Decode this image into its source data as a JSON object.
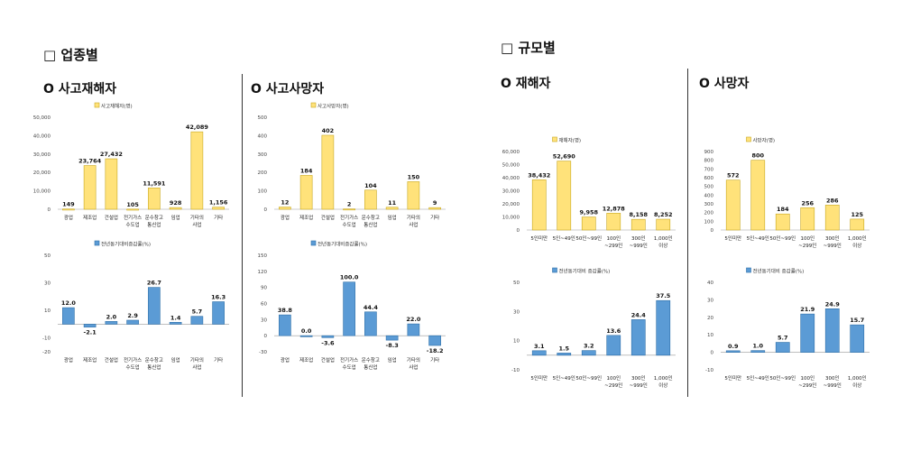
{
  "sections": {
    "industry": "□ 업종별",
    "scale": "□ 규모별"
  },
  "subtitles": {
    "industry_injury": "O 사고재해자",
    "industry_death": "O 사고사망자",
    "scale_injury": "O 재해자",
    "scale_death": "O 사망자"
  },
  "colors": {
    "yellow": "#FFE27A",
    "yellow_border": "#C8A820",
    "blue": "#5B9BD5",
    "blue_border": "#2E6FA8"
  },
  "chart_data": [
    {
      "type": "bar",
      "title": "",
      "legend": "사고재해자(명)",
      "categories": [
        [
          "광업"
        ],
        [
          "제조업"
        ],
        [
          "건설업"
        ],
        [
          "전기가스",
          "수도업"
        ],
        [
          "운수창고",
          "통신업"
        ],
        [
          "임업"
        ],
        [
          "기타의",
          "사업"
        ],
        [
          "기타"
        ]
      ],
      "values": [
        149,
        23764,
        27432,
        105,
        11591,
        928,
        42089,
        1156
      ],
      "value_labels": [
        "149",
        "23,764",
        "27,432",
        "105",
        "11,591",
        "928",
        "42,089",
        "1,156"
      ],
      "yticks": [
        0,
        10000,
        20000,
        30000,
        40000,
        50000
      ],
      "ytick_labels": [
        "0",
        "10,000",
        "20,000",
        "30,000",
        "40,000",
        "50,000"
      ],
      "ylim": [
        0,
        50000
      ],
      "color": "yellow"
    },
    {
      "type": "bar",
      "title": "",
      "legend": "사고사망자(명)",
      "categories": [
        [
          "광업"
        ],
        [
          "제조업"
        ],
        [
          "건설업"
        ],
        [
          "전기가스",
          "수도업"
        ],
        [
          "운수창고",
          "통신업"
        ],
        [
          "임업"
        ],
        [
          "기타의",
          "사업"
        ],
        [
          "기타"
        ]
      ],
      "values": [
        12,
        184,
        402,
        2,
        104,
        11,
        150,
        9
      ],
      "value_labels": [
        "12",
        "184",
        "402",
        "2",
        "104",
        "11",
        "150",
        "9"
      ],
      "yticks": [
        0,
        100,
        200,
        300,
        400,
        500
      ],
      "ytick_labels": [
        "0",
        "100",
        "200",
        "300",
        "400",
        "500"
      ],
      "ylim": [
        0,
        500
      ],
      "color": "yellow"
    },
    {
      "type": "bar",
      "title": "",
      "legend": "전년동기대비증감률(%)",
      "categories": [
        [
          "광업"
        ],
        [
          "제조업"
        ],
        [
          "건설업"
        ],
        [
          "전기가스",
          "수도업"
        ],
        [
          "운수창고",
          "통신업"
        ],
        [
          "임업"
        ],
        [
          "기타의",
          "사업"
        ],
        [
          "기타"
        ]
      ],
      "values": [
        12.0,
        -2.1,
        2.0,
        2.9,
        26.7,
        1.4,
        5.7,
        16.3
      ],
      "value_labels": [
        "12.0",
        "-2.1",
        "2.0",
        "2.9",
        "26.7",
        "1.4",
        "5.7",
        "16.3"
      ],
      "yticks": [
        -20,
        -10,
        10,
        30,
        50
      ],
      "ytick_labels": [
        "-20",
        "-10",
        "10",
        "30",
        "50"
      ],
      "ylim": [
        -20,
        50
      ],
      "color": "blue"
    },
    {
      "type": "bar",
      "title": "",
      "legend": "전년동기대비증감률(%)",
      "categories": [
        [
          "광업"
        ],
        [
          "제조업"
        ],
        [
          "건설업"
        ],
        [
          "전기가스",
          "수도업"
        ],
        [
          "운수창고",
          "통신업"
        ],
        [
          "임업"
        ],
        [
          "기타의",
          "사업"
        ],
        [
          "기타"
        ]
      ],
      "values": [
        38.8,
        0.0,
        -3.6,
        100.0,
        44.4,
        -8.3,
        22.0,
        -18.2
      ],
      "value_labels": [
        "38.8",
        "0.0",
        "-3.6",
        "100.0",
        "44.4",
        "-8.3",
        "22.0",
        "-18.2"
      ],
      "yticks": [
        -30,
        0,
        30,
        60,
        90,
        120,
        150
      ],
      "ytick_labels": [
        "-30",
        "0",
        "30",
        "60",
        "90",
        "120",
        "150"
      ],
      "ylim": [
        -30,
        150
      ],
      "color": "blue"
    },
    {
      "type": "bar",
      "title": "",
      "legend": "재해자(명)",
      "categories": [
        [
          "5인미만"
        ],
        [
          "5인~49인"
        ],
        [
          "50인~99인"
        ],
        [
          "100인",
          "~299인"
        ],
        [
          "300인",
          "~999인"
        ],
        [
          "1,000인",
          "이상"
        ]
      ],
      "values": [
        38432,
        52690,
        9958,
        12878,
        8158,
        8252
      ],
      "value_labels": [
        "38,432",
        "52,690",
        "9,958",
        "12,878",
        "8,158",
        "8,252"
      ],
      "yticks": [
        0,
        10000,
        20000,
        30000,
        40000,
        50000,
        60000
      ],
      "ytick_labels": [
        "0",
        "10,000",
        "20,000",
        "30,000",
        "40,000",
        "50,000",
        "60,000"
      ],
      "ylim": [
        0,
        60000
      ],
      "color": "yellow"
    },
    {
      "type": "bar",
      "title": "",
      "legend": "사망자(명)",
      "categories": [
        [
          "5인미만"
        ],
        [
          "5인~49인"
        ],
        [
          "50인~99인"
        ],
        [
          "100인",
          "~299인"
        ],
        [
          "300인",
          "~999인"
        ],
        [
          "1,000인",
          "이상"
        ]
      ],
      "values": [
        572,
        800,
        184,
        256,
        286,
        125
      ],
      "value_labels": [
        "572",
        "800",
        "184",
        "256",
        "286",
        "125"
      ],
      "yticks": [
        0,
        100,
        200,
        300,
        400,
        500,
        600,
        700,
        800,
        900
      ],
      "ytick_labels": [
        "0",
        "100",
        "200",
        "300",
        "400",
        "500",
        "600",
        "700",
        "800",
        "900"
      ],
      "ylim": [
        0,
        900
      ],
      "color": "yellow"
    },
    {
      "type": "bar",
      "title": "",
      "legend": "전년동기대비 증감률(%)",
      "categories": [
        [
          "5인미만"
        ],
        [
          "5인~49인"
        ],
        [
          "50인~99인"
        ],
        [
          "100인",
          "~299인"
        ],
        [
          "300인",
          "~999인"
        ],
        [
          "1,000인",
          "이상"
        ]
      ],
      "values": [
        3.1,
        1.5,
        3.2,
        13.6,
        24.4,
        37.5
      ],
      "value_labels": [
        "3.1",
        "1.5",
        "3.2",
        "13.6",
        "24.4",
        "37.5"
      ],
      "yticks": [
        -10,
        10,
        30,
        50
      ],
      "ytick_labels": [
        "-10",
        "10",
        "30",
        "50"
      ],
      "ylim": [
        -10,
        50
      ],
      "color": "blue"
    },
    {
      "type": "bar",
      "title": "",
      "legend": "전년동기대비 증감률(%)",
      "categories": [
        [
          "5인미만"
        ],
        [
          "5인~49인"
        ],
        [
          "50인~99인"
        ],
        [
          "100인",
          "~299인"
        ],
        [
          "300인",
          "~999인"
        ],
        [
          "1,000인",
          "이상"
        ]
      ],
      "values": [
        0.9,
        1.0,
        5.7,
        21.9,
        24.9,
        15.7
      ],
      "value_labels": [
        "0.9",
        "1.0",
        "5.7",
        "21.9",
        "24.9",
        "15.7"
      ],
      "yticks": [
        -10,
        0,
        10,
        20,
        30,
        40
      ],
      "ytick_labels": [
        "-10",
        "0",
        "10",
        "20",
        "30",
        "40"
      ],
      "ylim": [
        -10,
        40
      ],
      "color": "blue"
    }
  ]
}
